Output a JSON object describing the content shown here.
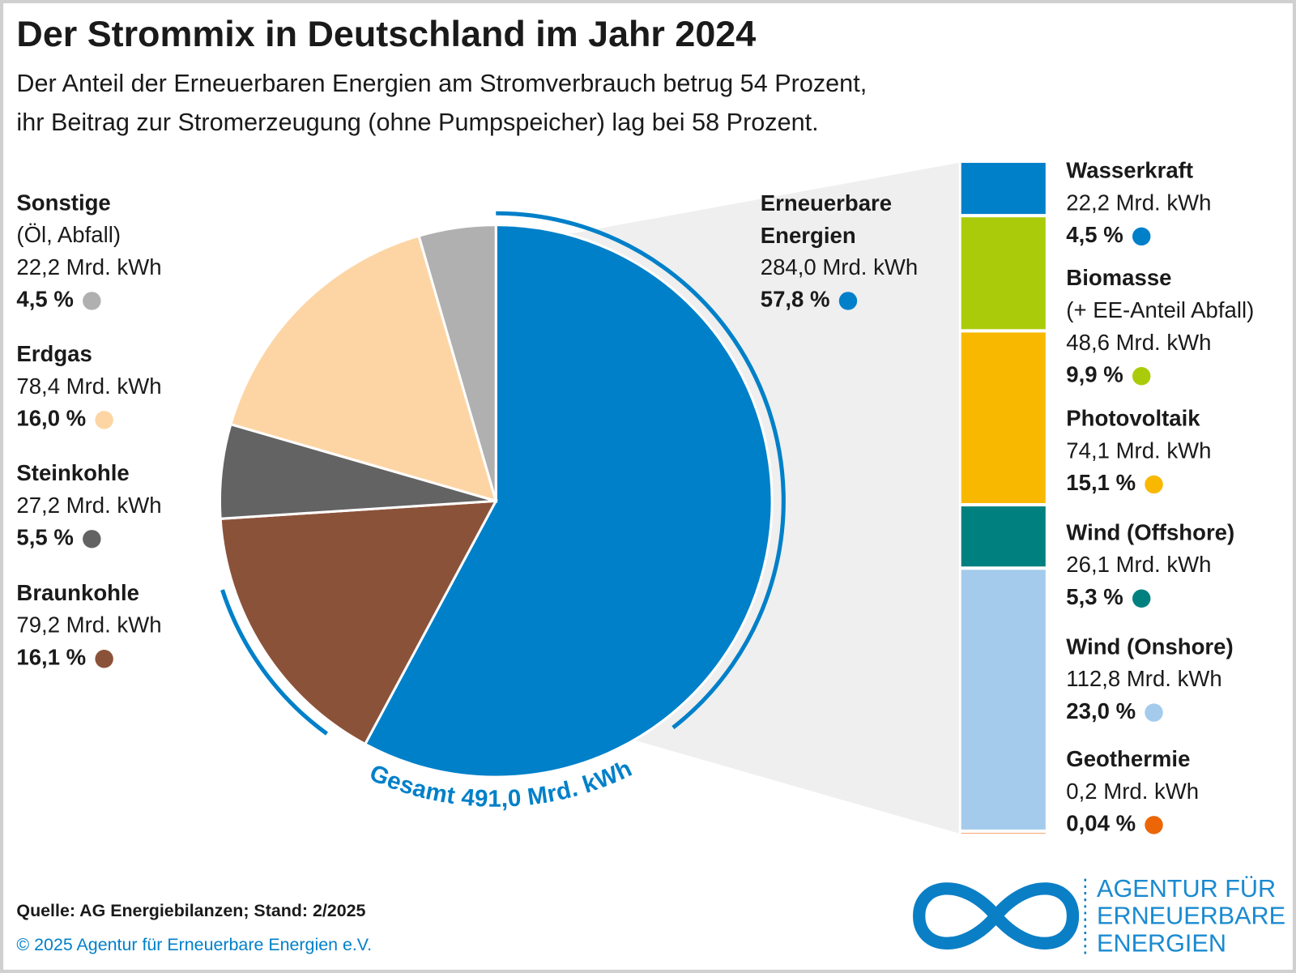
{
  "chart_data": [
    {
      "type": "pie",
      "title": "Der Strommix in Deutschland im Jahr 2024",
      "subtitle": [
        "Der Anteil der Erneuerbaren Energien am Stromverbrauch betrug 54 Prozent,",
        "ihr Beitrag zur Stromerzeugung (ohne Pumpspeicher) lag bei 58 Prozent."
      ],
      "categories": [
        "Erneuerbare Energien",
        "Braunkohle",
        "Steinkohle",
        "Erdgas",
        "Sonstige"
      ],
      "sublabels": [
        null,
        null,
        null,
        null,
        "(Öl, Abfall)"
      ],
      "values": [
        57.8,
        16.1,
        5.5,
        16.0,
        4.5
      ],
      "value_labels": [
        "57,8 %",
        "16,1 %",
        "5,5 %",
        "16,0 %",
        "4,5 %"
      ],
      "energy": [
        284.0,
        79.2,
        27.2,
        78.4,
        22.2
      ],
      "energy_labels": [
        "284,0 Mrd. kWh",
        "79,2 Mrd. kWh",
        "27,2 Mrd. kWh",
        "78,4 Mrd. kWh",
        "22,2 Mrd. kWh"
      ],
      "colors": [
        "#0080c9",
        "#8b523a",
        "#646363",
        "#fdd5a5",
        "#b1b0b0"
      ],
      "total": 491.0,
      "total_label": "Gesamt 491,0 Mrd. kWh",
      "source": "Quelle: AG Energiebilanzen; Stand: 2/2025",
      "copyright": "© 2025 Agentur für Erneuerbare Energien e.V."
    },
    {
      "type": "stacked_bar",
      "categories": [
        "Wasserkraft",
        "Biomasse",
        "Photovoltaik",
        "Wind (Offshore)",
        "Wind (Onshore)",
        "Geothermie"
      ],
      "sublabels": [
        null,
        "(+ EE-Anteil Abfall)",
        null,
        null,
        null,
        null
      ],
      "values": [
        4.5,
        9.9,
        15.1,
        5.3,
        23.0,
        0.04
      ],
      "value_labels": [
        "4,5 %",
        "9,9 %",
        "15,1 %",
        "5,3 %",
        "23,0 %",
        "0,04 %"
      ],
      "energy": [
        22.2,
        48.6,
        74.1,
        26.1,
        112.8,
        0.2
      ],
      "energy_labels": [
        "22,2 Mrd. kWh",
        "48,6 Mrd. kWh",
        "74,1 Mrd. kWh",
        "26,1 Mrd. kWh",
        "112,8 Mrd. kWh",
        "0,2 Mrd. kWh"
      ],
      "colors": [
        "#0080c9",
        "#aacb0a",
        "#f9b800",
        "#00807f",
        "#a4cbec",
        "#ec6608"
      ]
    }
  ],
  "logo": {
    "lines": [
      "AGENTUR FÜR",
      "ERNEUERBARE",
      "ENERGIEN"
    ]
  }
}
